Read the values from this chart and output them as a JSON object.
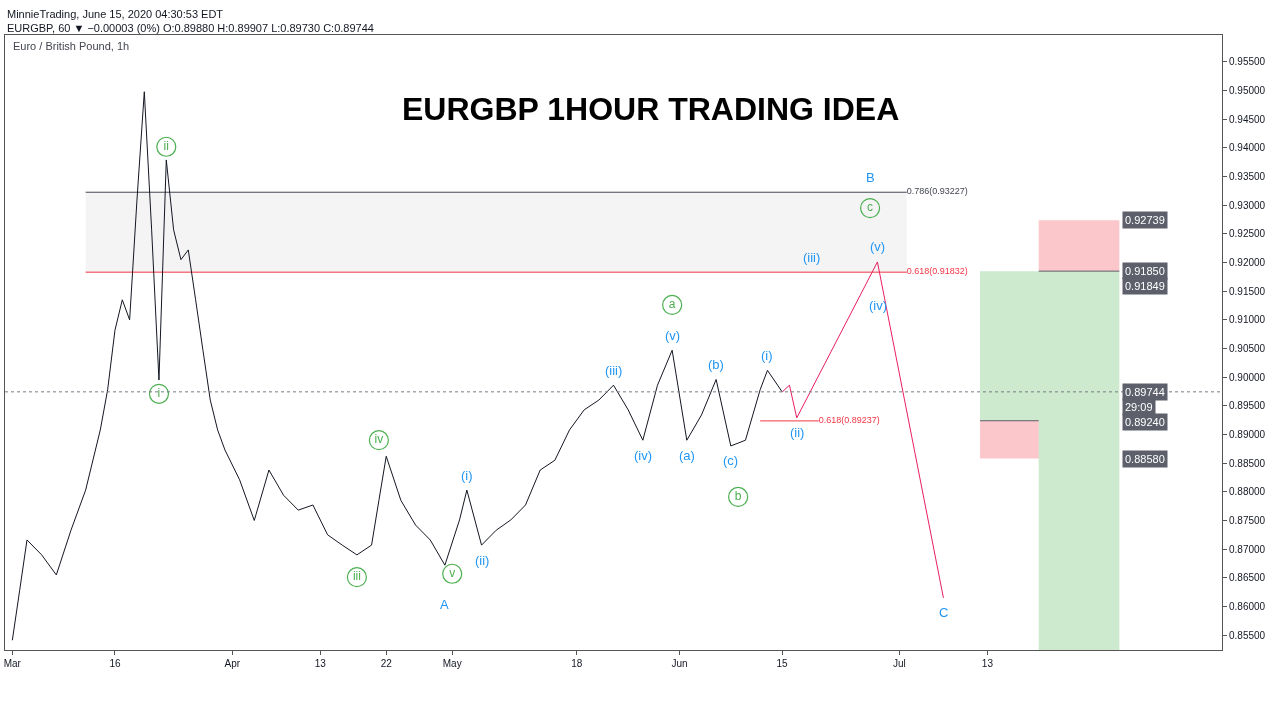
{
  "chart_data": {
    "type": "line",
    "title": "EURGBP 1HOUR TRADING IDEA",
    "subtitle": "Euro / British Pound, 1h",
    "annotations": [
      "MinnieTrading, June 15, 2020 04:30:53 EDT",
      "EURGBP, 60 ▼ −0.00003 (0%) O:0.89880 H:0.89907 L:0.89730 C:0.89744",
      {
        "text": "0.92739",
        "x": "2020-07-31",
        "y": 0.92739
      },
      {
        "text": "0.91850",
        "x": "2020-07-31",
        "y": 0.9185
      },
      {
        "text": "0.91849",
        "x": "2020-07-31",
        "y": 0.91849
      },
      {
        "text": "0.89744",
        "x": "2020-07-31",
        "y": 0.89744
      },
      {
        "text": "29:09",
        "x": "2020-07-31",
        "y": 0.8949
      },
      {
        "text": "0.89240",
        "x": "2020-07-31",
        "y": 0.8924
      },
      {
        "text": "0.88580",
        "x": "2020-07-31",
        "y": 0.8858
      },
      {
        "text": "(iii)",
        "x": "2020-06-19",
        "y": 0.91832
      },
      {
        "text": "(v)",
        "x": "2020-06-28",
        "y": 0.9201
      },
      {
        "text": "(iv)",
        "x": "2020-06-26",
        "y": 0.9152
      },
      {
        "text": "(i)",
        "x": "2020-06-13",
        "y": 0.9012
      },
      {
        "text": "(ii)",
        "x": "2020-06-17",
        "y": 0.8929
      },
      {
        "text": "(iii)",
        "x": "2020-05-23",
        "y": 0.8986
      },
      {
        "text": "(v)",
        "x": "2020-05-31",
        "y": 0.9047
      },
      {
        "text": "(iv)",
        "x": "2020-05-27",
        "y": 0.889
      },
      {
        "text": "(a)",
        "x": "2020-06-02",
        "y": 0.889
      },
      {
        "text": "(b)",
        "x": "2020-06-06",
        "y": 0.8996
      },
      {
        "text": "(c)",
        "x": "2020-06-08",
        "y": 0.888
      },
      {
        "text": "(i)",
        "x": "2020-05-03",
        "y": 0.8803
      },
      {
        "text": "(ii)",
        "x": "2020-05-05",
        "y": 0.8707
      },
      {
        "text": "A",
        "x": "2020-04-30",
        "y": 0.8672
      },
      {
        "text": "B",
        "x": "2020-06-27",
        "y": 0.93227
      },
      {
        "text": "C",
        "x": "2020-07-07",
        "y": 0.8615
      }
    ],
    "xlim": [
      "2020-03-01",
      "2020-08-14"
    ],
    "xticks": [
      {
        "value": "2020-03-02",
        "label": "Mar"
      },
      {
        "value": "2020-03-16",
        "label": "16"
      },
      {
        "value": "2020-04-01",
        "label": "Apr"
      },
      {
        "value": "2020-04-13",
        "label": "13"
      },
      {
        "value": "2020-04-22",
        "label": "22"
      },
      {
        "value": "2020-05-01",
        "label": "May"
      },
      {
        "value": "2020-05-18",
        "label": "18"
      },
      {
        "value": "2020-06-01",
        "label": "Jun"
      },
      {
        "value": "2020-06-15",
        "label": "15"
      },
      {
        "value": "2020-07-01",
        "label": "Jul"
      },
      {
        "value": "2020-07-13",
        "label": "13"
      }
    ],
    "ylim": [
      0.8524,
      0.9597
    ],
    "yticks": [
      {
        "value": 0.855,
        "label": "0.85500"
      },
      {
        "value": 0.86,
        "label": "0.86000"
      },
      {
        "value": 0.865,
        "label": "0.86500"
      },
      {
        "value": 0.87,
        "label": "0.87000"
      },
      {
        "value": 0.875,
        "label": "0.87500"
      },
      {
        "value": 0.88,
        "label": "0.88000"
      },
      {
        "value": 0.885,
        "label": "0.88500"
      },
      {
        "value": 0.89,
        "label": "0.89000"
      },
      {
        "value": 0.895,
        "label": "0.89500"
      },
      {
        "value": 0.9,
        "label": "0.90000"
      },
      {
        "value": 0.905,
        "label": "0.90500"
      },
      {
        "value": 0.91,
        "label": "0.91000"
      },
      {
        "value": 0.915,
        "label": "0.91500"
      },
      {
        "value": 0.92,
        "label": "0.92000"
      },
      {
        "value": 0.925,
        "label": "0.92500"
      },
      {
        "value": 0.93,
        "label": "0.93000"
      },
      {
        "value": 0.935,
        "label": "0.93500"
      },
      {
        "value": 0.94,
        "label": "0.94000"
      },
      {
        "value": 0.945,
        "label": "0.94500"
      },
      {
        "value": 0.95,
        "label": "0.95000"
      },
      {
        "value": 0.955,
        "label": "0.95500"
      }
    ],
    "ref_lines": [
      {
        "axis": "y",
        "value": 0.89744,
        "color": "#787b86",
        "line_style": "dotted"
      }
    ],
    "series": [
      {
        "color": "#434651",
        "x": [
          "2020-03-12",
          "2020-07-02"
        ],
        "values": [
          0.93227,
          0.93227
        ],
        "lower": [
          0.91832,
          0.91832
        ],
        "upper": [
          0.93227,
          0.93227
        ],
        "value_labels": [
          null,
          "0.786(0.93227)"
        ]
      },
      {
        "color": "#f23645",
        "x": [
          "2020-03-12",
          "2020-07-02"
        ],
        "values": [
          0.91832,
          0.91832
        ],
        "value_labels": [
          null,
          "0.618(0.91832)"
        ]
      },
      {
        "color": "#f23645",
        "x": [
          "2020-06-12",
          "2020-06-20"
        ],
        "values": [
          0.89237,
          0.89237
        ],
        "value_labels": [
          null,
          "0.618(0.89237)"
        ]
      },
      {
        "color": "#4caf50",
        "x": [
          "2020-07-12",
          "2020-07-20"
        ],
        "values": [
          null,
          null
        ],
        "lower": [
          0.8924,
          0.8924
        ],
        "upper": [
          0.9185,
          0.9185
        ]
      },
      {
        "color": "#f23645",
        "x": [
          "2020-07-12",
          "2020-07-20"
        ],
        "values": [
          null,
          null
        ],
        "lower": [
          0.8858,
          0.8858
        ],
        "upper": [
          0.8924,
          0.8924
        ]
      },
      {
        "color": "#4caf50",
        "x": [
          "2020-07-20",
          "2020-07-31"
        ],
        "values": [
          null,
          null
        ],
        "lower": [
          0.8524,
          0.8524
        ],
        "upper": [
          0.9185,
          0.9185
        ]
      },
      {
        "color": "#f23645",
        "x": [
          "2020-07-20",
          "2020-07-31"
        ],
        "values": [
          null,
          null
        ],
        "lower": [
          0.9185,
          0.9185
        ],
        "upper": [
          0.92739,
          0.92739
        ]
      },
      {
        "color": "#5d606b",
        "x": [
          "2020-07-12",
          "2020-07-20"
        ],
        "values": [
          0.8924,
          0.8924
        ]
      },
      {
        "color": "#5d606b",
        "x": [
          "2020-07-20",
          "2020-07-31"
        ],
        "values": [
          0.9185,
          0.9185
        ]
      },
      {
        "color": "#131722",
        "x": [
          "2020-03-02",
          "2020-03-03",
          "2020-03-04",
          "2020-03-06",
          "2020-03-08",
          "2020-03-10",
          "2020-03-12",
          "2020-03-14",
          "2020-03-15",
          "2020-03-16",
          "2020-03-17",
          "2020-03-18",
          "2020-03-19",
          "2020-03-20",
          "2020-03-21",
          "2020-03-22",
          "2020-03-23",
          "2020-03-24",
          "2020-03-25",
          "2020-03-26",
          "2020-03-27",
          "2020-03-28",
          "2020-03-29",
          "2020-03-30",
          "2020-03-31",
          "2020-04-02",
          "2020-04-04",
          "2020-04-06",
          "2020-04-08",
          "2020-04-10",
          "2020-04-12",
          "2020-04-14",
          "2020-04-16",
          "2020-04-18",
          "2020-04-20",
          "2020-04-21",
          "2020-04-22",
          "2020-04-24",
          "2020-04-26",
          "2020-04-28",
          "2020-04-30",
          "2020-05-02",
          "2020-05-03",
          "2020-05-05",
          "2020-05-07",
          "2020-05-09",
          "2020-05-11",
          "2020-05-13",
          "2020-05-15",
          "2020-05-17",
          "2020-05-19",
          "2020-05-21",
          "2020-05-23",
          "2020-05-25",
          "2020-05-27",
          "2020-05-29",
          "2020-05-31",
          "2020-06-02",
          "2020-06-04",
          "2020-06-06",
          "2020-06-08",
          "2020-06-10",
          "2020-06-12",
          "2020-06-13",
          "2020-06-15"
        ],
        "values": [
          0.8541,
          0.8628,
          0.8716,
          0.869,
          0.8655,
          0.8733,
          0.8803,
          0.8908,
          0.8978,
          0.9082,
          0.9135,
          0.91,
          0.9309,
          0.9498,
          0.9257,
          0.8995,
          0.9379,
          0.9257,
          0.9205,
          0.9222,
          0.9135,
          0.9047,
          0.896,
          0.8908,
          0.8873,
          0.8821,
          0.875,
          0.8838,
          0.8794,
          0.8768,
          0.8777,
          0.8725,
          0.8707,
          0.869,
          0.8707,
          0.8785,
          0.8862,
          0.8785,
          0.8742,
          0.8716,
          0.8672,
          0.8751,
          0.8803,
          0.8707,
          0.8733,
          0.8751,
          0.8777,
          0.8838,
          0.8855,
          0.8908,
          0.8943,
          0.896,
          0.8986,
          0.8943,
          0.889,
          0.8986,
          0.9047,
          0.889,
          0.8934,
          0.8996,
          0.888,
          0.889,
          0.8978,
          0.9012,
          0.89744
        ]
      },
      {
        "color": "#e91e63",
        "x": [
          "2020-06-15",
          "2020-06-16",
          "2020-06-17",
          "2020-06-28",
          "2020-07-07"
        ],
        "values": [
          0.8974,
          0.8986,
          0.8929,
          0.9201,
          0.8615
        ]
      },
      {
        "type": "scatter",
        "marker": "circle",
        "color": "#4caf50",
        "x": [
          "2020-03-23",
          "2020-03-22",
          "2020-04-21",
          "2020-04-18",
          "2020-05-01",
          "2020-05-31",
          "2020-06-09",
          "2020-06-27"
        ],
        "values": [
          0.9402,
          0.8971,
          0.889,
          0.8651,
          0.8657,
          0.9126,
          0.8791,
          0.9295
        ],
        "value_labels": [
          "ii",
          "i",
          "iv",
          "iii",
          "v",
          "a",
          "b",
          "c"
        ]
      }
    ]
  }
}
